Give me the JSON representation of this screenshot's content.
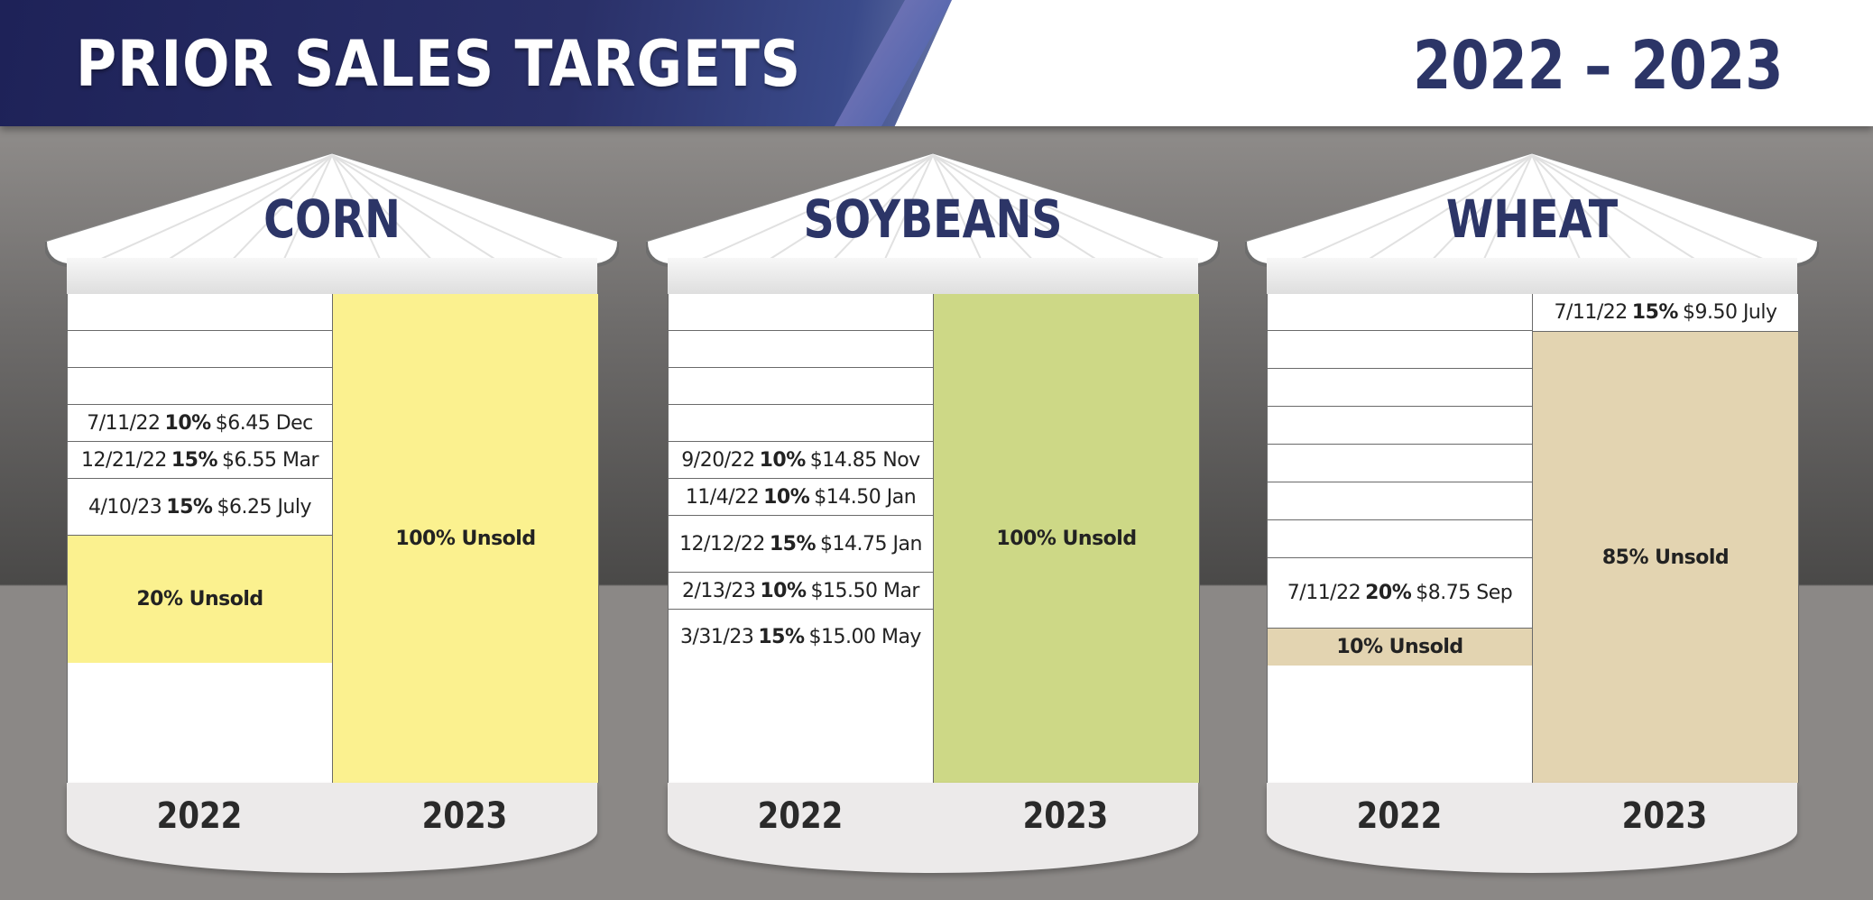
{
  "header": {
    "title": "PRIOR SALES TARGETS",
    "years": "2022 – 2023"
  },
  "silos": [
    {
      "name": "CORN",
      "fill": "#fbf18f",
      "col2022": [
        {
          "date": "",
          "pct": "",
          "price": ""
        },
        {
          "date": "",
          "pct": "",
          "price": ""
        },
        {
          "date": "",
          "pct": "",
          "price": ""
        },
        {
          "date": "7/11/22",
          "pct": "10%",
          "price": "$6.45 Dec"
        },
        {
          "date": "12/21/22",
          "pct": "15%",
          "price": "$6.55 Mar"
        },
        {
          "date": "4/10/23",
          "pct": "15%",
          "price": "$6.25 July"
        }
      ],
      "unsold2022": "20% Unsold",
      "col2023": [],
      "unsold2023": "100% Unsold",
      "year_left": "2022",
      "year_right": "2023"
    },
    {
      "name": "SOYBEANS",
      "fill": "#cdd886",
      "col2022": [
        {
          "date": "",
          "pct": "",
          "price": ""
        },
        {
          "date": "",
          "pct": "",
          "price": ""
        },
        {
          "date": "",
          "pct": "",
          "price": ""
        },
        {
          "date": "",
          "pct": "",
          "price": ""
        },
        {
          "date": "9/20/22",
          "pct": "10%",
          "price": "$14.85 Nov"
        },
        {
          "date": "11/4/22",
          "pct": "10%",
          "price": "$14.50 Jan"
        },
        {
          "date": "12/12/22",
          "pct": "15%",
          "price": "$14.75 Jan"
        },
        {
          "date": "2/13/23",
          "pct": "10%",
          "price": "$15.50 Mar"
        },
        {
          "date": "3/31/23",
          "pct": "15%",
          "price": "$15.00 May"
        }
      ],
      "unsold2022": "",
      "col2023": [],
      "unsold2023": "100% Unsold",
      "year_left": "2022",
      "year_right": "2023"
    },
    {
      "name": "WHEAT",
      "fill": "#e3d4b1",
      "col2022": [
        {
          "date": "",
          "pct": "",
          "price": ""
        },
        {
          "date": "",
          "pct": "",
          "price": ""
        },
        {
          "date": "",
          "pct": "",
          "price": ""
        },
        {
          "date": "",
          "pct": "",
          "price": ""
        },
        {
          "date": "",
          "pct": "",
          "price": ""
        },
        {
          "date": "",
          "pct": "",
          "price": ""
        },
        {
          "date": "",
          "pct": "",
          "price": ""
        },
        {
          "date": "7/11/22",
          "pct": "20%",
          "price": "$8.75 Sep"
        }
      ],
      "unsold2022": "10% Unsold",
      "col2023": [
        {
          "date": "7/11/22",
          "pct": "15%",
          "price": "$9.50 July"
        }
      ],
      "unsold2023": "85% Unsold",
      "year_left": "2022",
      "year_right": "2023"
    }
  ]
}
